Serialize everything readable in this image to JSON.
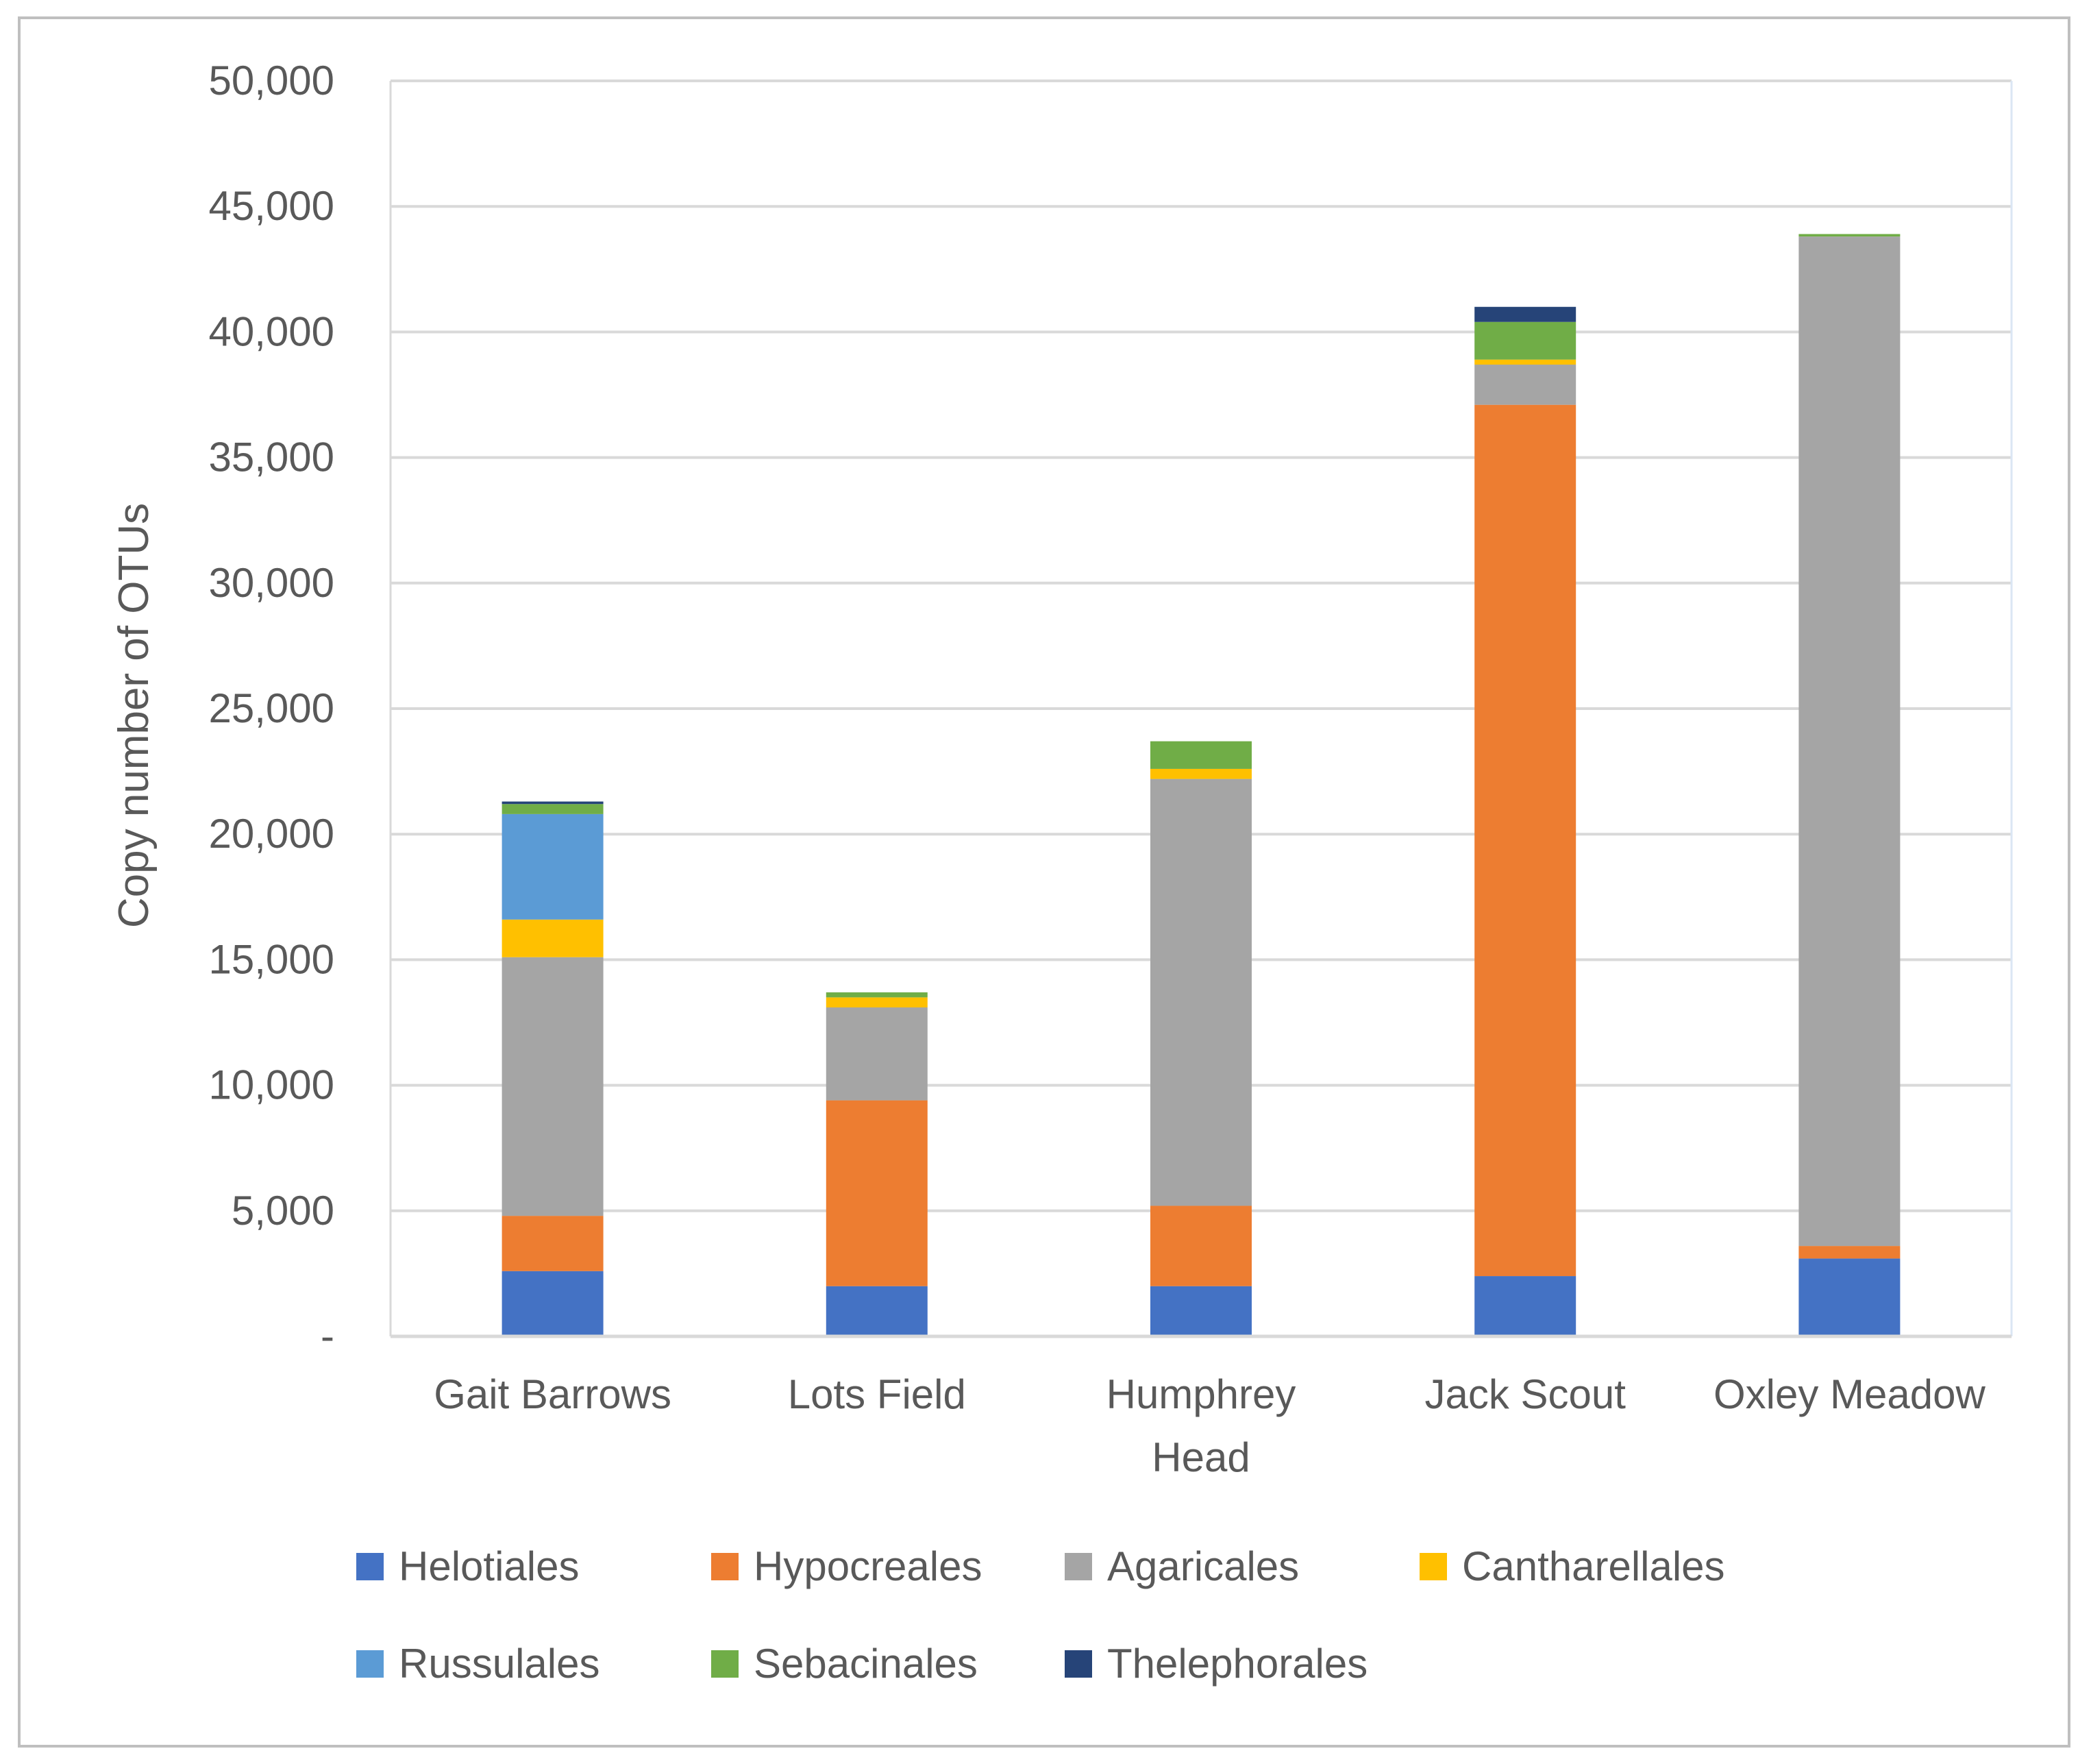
{
  "chart_data": {
    "type": "bar",
    "stacked": true,
    "title": "",
    "xlabel": "",
    "ylabel": "Copy number of OTUs",
    "ylim": [
      0,
      50000
    ],
    "ytick_step": 5000,
    "ytick_labels": [
      "-",
      "5,000",
      "10,000",
      "15,000",
      "20,000",
      "25,000",
      "30,000",
      "35,000",
      "40,000",
      "45,000",
      "50,000"
    ],
    "grid": true,
    "legend_position": "bottom",
    "categories": [
      [
        "Gait Barrows"
      ],
      [
        "Lots Field"
      ],
      [
        "Humphrey",
        "Head"
      ],
      [
        "Jack Scout"
      ],
      [
        "Oxley Meadow"
      ]
    ],
    "series": [
      {
        "name": "Helotiales",
        "color": "#4472c4",
        "values": [
          2600,
          2000,
          2000,
          2400,
          3100
        ]
      },
      {
        "name": "Hypocreales",
        "color": "#ed7d31",
        "values": [
          2200,
          7400,
          3200,
          34700,
          500
        ]
      },
      {
        "name": "Agaricales",
        "color": "#a5a5a5",
        "values": [
          10300,
          3700,
          17000,
          1600,
          40200
        ]
      },
      {
        "name": "Cantharellales",
        "color": "#ffc000",
        "values": [
          1500,
          400,
          400,
          200,
          0
        ]
      },
      {
        "name": "Russulales",
        "color": "#5b9bd5",
        "values": [
          4200,
          0,
          0,
          0,
          0
        ]
      },
      {
        "name": "Sebacinales",
        "color": "#70ad47",
        "values": [
          400,
          200,
          1100,
          1500,
          100
        ]
      },
      {
        "name": "Thelephorales",
        "color": "#264478",
        "values": [
          100,
          0,
          0,
          600,
          0
        ]
      }
    ]
  }
}
